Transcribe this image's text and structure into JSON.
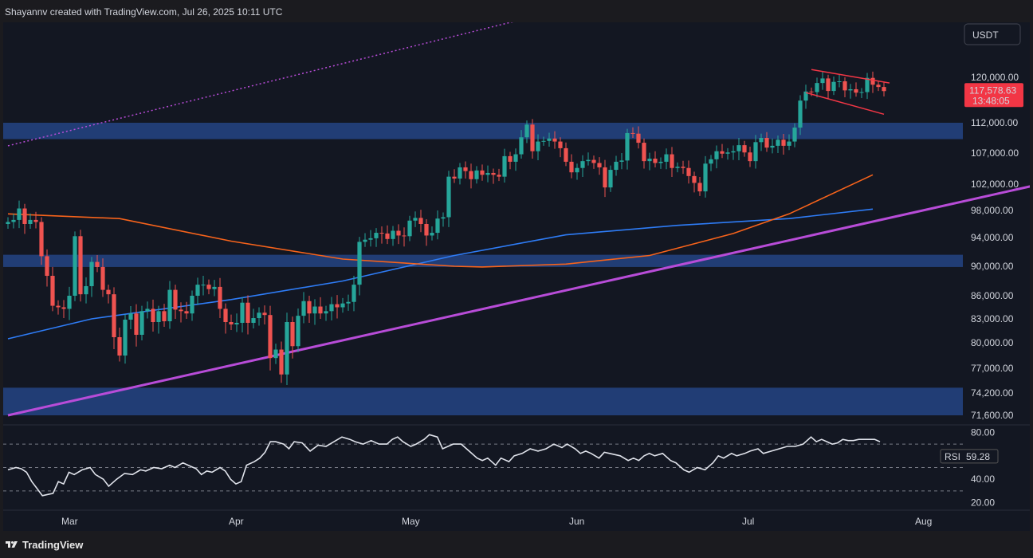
{
  "header": {
    "credit": "Shayannv created with TradingView.com, Jul 26, 2025 10:11 UTC"
  },
  "footer": {
    "brand": "TradingView",
    "logo_icon": "tradingview-logo-icon"
  },
  "chart_data": [
    {
      "type": "candlestick",
      "currency_label": "USDT",
      "price_ticks": [
        "120,000.00",
        "112,000.00",
        "107,000.00",
        "102,000.00",
        "98,000.00",
        "94,000.00",
        "90,000.00",
        "86,000.00",
        "83,000.00",
        "80,000.00",
        "77,000.00",
        "74,200.00",
        "71,600.00"
      ],
      "time_ticks": [
        "Mar",
        "Apr",
        "May",
        "Jun",
        "Jul",
        "Aug"
      ],
      "last_price": "117,578.63",
      "countdown": "13:48:05",
      "colors": {
        "up": "#26a69a",
        "down": "#ef5350",
        "ema_orange": "#f7631b",
        "ma_blue": "#2e7cf6",
        "trendline": "#b84cd8",
        "zone": "#223f7a",
        "pattern": "#f23645"
      },
      "close_series": [
        [
          "2025-02-18",
          96300
        ],
        [
          "2025-02-19",
          96600
        ],
        [
          "2025-02-20",
          98300
        ],
        [
          "2025-02-21",
          96000
        ],
        [
          "2025-02-22",
          96600
        ],
        [
          "2025-02-23",
          96300
        ],
        [
          "2025-02-24",
          91400
        ],
        [
          "2025-02-25",
          88700
        ],
        [
          "2025-02-26",
          84700
        ],
        [
          "2025-02-27",
          84500
        ],
        [
          "2025-02-28",
          84300
        ],
        [
          "2025-03-01",
          86000
        ],
        [
          "2025-03-02",
          94200
        ],
        [
          "2025-03-03",
          86200
        ],
        [
          "2025-03-04",
          87300
        ],
        [
          "2025-03-05",
          90600
        ],
        [
          "2025-03-06",
          89900
        ],
        [
          "2025-03-07",
          86800
        ],
        [
          "2025-03-08",
          86200
        ],
        [
          "2025-03-09",
          80700
        ],
        [
          "2025-03-10",
          78500
        ],
        [
          "2025-03-11",
          82900
        ],
        [
          "2025-03-12",
          83700
        ],
        [
          "2025-03-13",
          81000
        ],
        [
          "2025-03-14",
          84000
        ],
        [
          "2025-03-15",
          84300
        ],
        [
          "2025-03-16",
          82600
        ],
        [
          "2025-03-17",
          84000
        ],
        [
          "2025-03-18",
          82700
        ],
        [
          "2025-03-19",
          86800
        ],
        [
          "2025-03-20",
          84200
        ],
        [
          "2025-03-21",
          84000
        ],
        [
          "2025-03-22",
          83700
        ],
        [
          "2025-03-23",
          86000
        ],
        [
          "2025-03-24",
          87500
        ],
        [
          "2025-03-25",
          87500
        ],
        [
          "2025-03-26",
          86900
        ],
        [
          "2025-03-27",
          87200
        ],
        [
          "2025-03-28",
          84300
        ],
        [
          "2025-03-29",
          82600
        ],
        [
          "2025-03-30",
          82300
        ],
        [
          "2025-03-31",
          82500
        ],
        [
          "2025-04-01",
          85100
        ],
        [
          "2025-04-02",
          82500
        ],
        [
          "2025-04-03",
          83100
        ],
        [
          "2025-04-04",
          83800
        ],
        [
          "2025-04-05",
          83500
        ],
        [
          "2025-04-06",
          78200
        ],
        [
          "2025-04-07",
          79200
        ],
        [
          "2025-04-08",
          76300
        ],
        [
          "2025-04-09",
          82600
        ],
        [
          "2025-04-10",
          79600
        ],
        [
          "2025-04-11",
          83400
        ],
        [
          "2025-04-12",
          85300
        ],
        [
          "2025-04-13",
          83700
        ],
        [
          "2025-04-14",
          84600
        ],
        [
          "2025-04-15",
          83700
        ],
        [
          "2025-04-16",
          84000
        ],
        [
          "2025-04-17",
          84900
        ],
        [
          "2025-04-18",
          84500
        ],
        [
          "2025-04-19",
          85000
        ],
        [
          "2025-04-20",
          85200
        ],
        [
          "2025-04-21",
          87500
        ],
        [
          "2025-04-22",
          93400
        ],
        [
          "2025-04-23",
          93700
        ],
        [
          "2025-04-24",
          93900
        ],
        [
          "2025-04-25",
          94700
        ],
        [
          "2025-04-26",
          94600
        ],
        [
          "2025-04-27",
          93800
        ],
        [
          "2025-04-28",
          95000
        ],
        [
          "2025-04-29",
          94300
        ],
        [
          "2025-04-30",
          94200
        ],
        [
          "2025-05-01",
          96500
        ],
        [
          "2025-05-02",
          96900
        ],
        [
          "2025-05-03",
          96000
        ],
        [
          "2025-05-04",
          94300
        ],
        [
          "2025-05-05",
          94700
        ],
        [
          "2025-05-06",
          96800
        ],
        [
          "2025-05-07",
          97000
        ],
        [
          "2025-05-08",
          103200
        ],
        [
          "2025-05-09",
          102900
        ],
        [
          "2025-05-10",
          104700
        ],
        [
          "2025-05-11",
          104100
        ],
        [
          "2025-05-12",
          102800
        ],
        [
          "2025-05-13",
          104200
        ],
        [
          "2025-05-14",
          103500
        ],
        [
          "2025-05-15",
          103800
        ],
        [
          "2025-05-16",
          103500
        ],
        [
          "2025-05-17",
          103200
        ],
        [
          "2025-05-18",
          106500
        ],
        [
          "2025-05-19",
          105600
        ],
        [
          "2025-05-20",
          106800
        ],
        [
          "2025-05-21",
          109600
        ],
        [
          "2025-05-22",
          111700
        ],
        [
          "2025-05-23",
          107300
        ],
        [
          "2025-05-24",
          108900
        ],
        [
          "2025-05-25",
          109000
        ],
        [
          "2025-05-26",
          109400
        ],
        [
          "2025-05-27",
          108900
        ],
        [
          "2025-05-28",
          107800
        ],
        [
          "2025-05-29",
          105600
        ],
        [
          "2025-05-30",
          103900
        ],
        [
          "2025-05-31",
          104600
        ],
        [
          "2025-06-01",
          105700
        ],
        [
          "2025-06-02",
          105900
        ],
        [
          "2025-06-03",
          105400
        ],
        [
          "2025-06-04",
          104700
        ],
        [
          "2025-06-05",
          101500
        ],
        [
          "2025-06-06",
          104300
        ],
        [
          "2025-06-07",
          105600
        ],
        [
          "2025-06-08",
          105800
        ],
        [
          "2025-06-09",
          110300
        ],
        [
          "2025-06-10",
          110200
        ],
        [
          "2025-06-11",
          108700
        ],
        [
          "2025-06-12",
          105700
        ],
        [
          "2025-06-13",
          106100
        ],
        [
          "2025-06-14",
          105400
        ],
        [
          "2025-06-15",
          105600
        ],
        [
          "2025-06-16",
          106800
        ],
        [
          "2025-06-17",
          104600
        ],
        [
          "2025-06-18",
          104800
        ],
        [
          "2025-06-19",
          104600
        ],
        [
          "2025-06-20",
          103300
        ],
        [
          "2025-06-21",
          102200
        ],
        [
          "2025-06-22",
          100900
        ],
        [
          "2025-06-23",
          105300
        ],
        [
          "2025-06-24",
          106000
        ],
        [
          "2025-06-25",
          107300
        ],
        [
          "2025-06-26",
          106900
        ],
        [
          "2025-06-27",
          107100
        ],
        [
          "2025-06-28",
          107300
        ],
        [
          "2025-06-29",
          108300
        ],
        [
          "2025-06-30",
          107100
        ],
        [
          "2025-07-01",
          105700
        ],
        [
          "2025-07-02",
          108800
        ],
        [
          "2025-07-03",
          109500
        ],
        [
          "2025-07-04",
          107900
        ],
        [
          "2025-07-05",
          108200
        ],
        [
          "2025-07-06",
          109200
        ],
        [
          "2025-07-07",
          108200
        ],
        [
          "2025-07-08",
          108900
        ],
        [
          "2025-07-09",
          111200
        ],
        [
          "2025-07-10",
          115900
        ],
        [
          "2025-07-11",
          117500
        ],
        [
          "2025-07-12",
          117400
        ],
        [
          "2025-07-13",
          119000
        ],
        [
          "2025-07-14",
          119800
        ],
        [
          "2025-07-15",
          117600
        ],
        [
          "2025-07-16",
          119200
        ],
        [
          "2025-07-17",
          119300
        ],
        [
          "2025-07-18",
          117700
        ],
        [
          "2025-07-19",
          117900
        ],
        [
          "2025-07-20",
          117300
        ],
        [
          "2025-07-21",
          117400
        ],
        [
          "2025-07-22",
          119900
        ],
        [
          "2025-07-23",
          118700
        ],
        [
          "2025-07-24",
          118300
        ],
        [
          "2025-07-25",
          117578.63
        ]
      ],
      "ema_orange": [
        [
          0,
          97500
        ],
        [
          20,
          96800
        ],
        [
          40,
          93500
        ],
        [
          60,
          91000
        ],
        [
          80,
          90000
        ],
        [
          85,
          89900
        ],
        [
          100,
          90300
        ],
        [
          115,
          91500
        ],
        [
          130,
          94600
        ],
        [
          140,
          97500
        ],
        [
          155,
          103500
        ]
      ],
      "ma_blue": [
        [
          0,
          80500
        ],
        [
          15,
          83000
        ],
        [
          40,
          85500
        ],
        [
          60,
          88000
        ],
        [
          80,
          91500
        ],
        [
          100,
          94400
        ],
        [
          120,
          95800
        ],
        [
          140,
          96800
        ],
        [
          155,
          98200
        ]
      ],
      "trendline_rising": [
        [
          0,
          71600
        ],
        [
          185,
          102000
        ]
      ],
      "trendline_dotted": [
        [
          0,
          108200
        ],
        [
          125,
          140000
        ]
      ],
      "zones": [
        [
          109300,
          112000
        ],
        [
          89900,
          91600
        ],
        [
          71600,
          74800
        ]
      ],
      "flag_upper": [
        [
          144,
          121500
        ],
        [
          158,
          119000
        ]
      ],
      "flag_lower": [
        [
          143,
          117300
        ],
        [
          157,
          113500
        ]
      ]
    },
    {
      "type": "line",
      "indicator": "RSI",
      "rsi_label": "RSI",
      "rsi_value": "59.28",
      "ylim": [
        15,
        85
      ],
      "ticks": [
        "80.00",
        "40.00",
        "20.00"
      ],
      "levels": [
        70,
        50,
        30
      ],
      "values": [
        [
          0,
          48
        ],
        [
          3,
          50
        ],
        [
          5,
          49
        ],
        [
          7,
          46
        ],
        [
          9,
          38
        ],
        [
          11,
          32
        ],
        [
          13,
          26
        ],
        [
          15,
          27
        ],
        [
          17,
          28
        ],
        [
          19,
          38
        ],
        [
          21,
          36
        ],
        [
          23,
          46
        ],
        [
          25,
          44
        ],
        [
          28,
          48
        ],
        [
          31,
          50
        ],
        [
          33,
          44
        ],
        [
          36,
          40
        ],
        [
          38,
          34
        ],
        [
          41,
          40
        ],
        [
          44,
          45
        ],
        [
          47,
          44
        ],
        [
          50,
          48
        ],
        [
          52,
          47
        ],
        [
          55,
          50
        ],
        [
          58,
          49
        ],
        [
          61,
          52
        ],
        [
          63,
          50
        ],
        [
          66,
          54
        ],
        [
          68,
          52
        ],
        [
          71,
          49
        ],
        [
          73,
          44
        ],
        [
          75,
          47
        ],
        [
          77,
          46
        ],
        [
          80,
          50
        ],
        [
          82,
          47
        ],
        [
          84,
          40
        ],
        [
          86,
          36
        ],
        [
          88,
          38
        ],
        [
          90,
          52
        ],
        [
          93,
          55
        ],
        [
          95,
          58
        ],
        [
          97,
          63
        ],
        [
          99,
          72
        ],
        [
          101,
          72
        ],
        [
          104,
          70
        ],
        [
          106,
          66
        ],
        [
          108,
          72
        ],
        [
          111,
          71
        ],
        [
          114,
          64
        ],
        [
          117,
          69
        ],
        [
          120,
          68
        ],
        [
          123,
          72
        ],
        [
          126,
          76
        ],
        [
          129,
          74
        ],
        [
          131,
          72
        ],
        [
          134,
          70
        ],
        [
          137,
          73
        ],
        [
          140,
          70
        ],
        [
          143,
          70
        ],
        [
          145,
          74
        ],
        [
          147,
          76
        ],
        [
          149,
          72
        ],
        [
          152,
          68
        ],
        [
          154,
          70
        ],
        [
          157,
          74
        ],
        [
          159,
          78
        ],
        [
          162,
          76
        ],
        [
          164,
          66
        ],
        [
          166,
          68
        ],
        [
          168,
          70
        ],
        [
          171,
          70
        ],
        [
          174,
          64
        ],
        [
          177,
          58
        ],
        [
          179,
          56
        ],
        [
          181,
          58
        ],
        [
          184,
          52
        ],
        [
          186,
          58
        ],
        [
          189,
          55
        ],
        [
          191,
          60
        ],
        [
          194,
          62
        ],
        [
          197,
          66
        ],
        [
          200,
          64
        ],
        [
          203,
          66
        ],
        [
          206,
          70
        ],
        [
          209,
          67
        ],
        [
          211,
          70
        ],
        [
          214,
          66
        ],
        [
          216,
          62
        ],
        [
          218,
          64
        ],
        [
          220,
          62
        ],
        [
          223,
          58
        ],
        [
          225,
          63
        ],
        [
          227,
          62
        ],
        [
          229,
          61
        ],
        [
          231,
          60
        ],
        [
          234,
          56
        ],
        [
          236,
          58
        ],
        [
          238,
          56
        ],
        [
          240,
          60
        ],
        [
          242,
          62
        ],
        [
          244,
          60
        ],
        [
          247,
          62
        ],
        [
          250,
          56
        ],
        [
          252,
          54
        ],
        [
          255,
          48
        ],
        [
          257,
          46
        ],
        [
          260,
          50
        ],
        [
          263,
          48
        ],
        [
          266,
          54
        ],
        [
          268,
          60
        ],
        [
          270,
          58
        ],
        [
          273,
          62
        ],
        [
          275,
          60
        ],
        [
          278,
          62
        ],
        [
          280,
          64
        ],
        [
          283,
          66
        ],
        [
          285,
          62
        ],
        [
          288,
          64
        ],
        [
          291,
          66
        ],
        [
          294,
          68
        ],
        [
          297,
          68
        ],
        [
          300,
          70
        ],
        [
          303,
          76
        ],
        [
          305,
          72
        ],
        [
          307,
          74
        ],
        [
          309,
          72
        ],
        [
          311,
          70
        ],
        [
          313,
          71
        ],
        [
          315,
          74
        ],
        [
          317,
          73
        ],
        [
          319,
          73
        ],
        [
          321,
          74
        ],
        [
          323,
          74
        ],
        [
          325,
          74
        ],
        [
          327,
          74
        ],
        [
          329,
          72
        ]
      ]
    }
  ]
}
